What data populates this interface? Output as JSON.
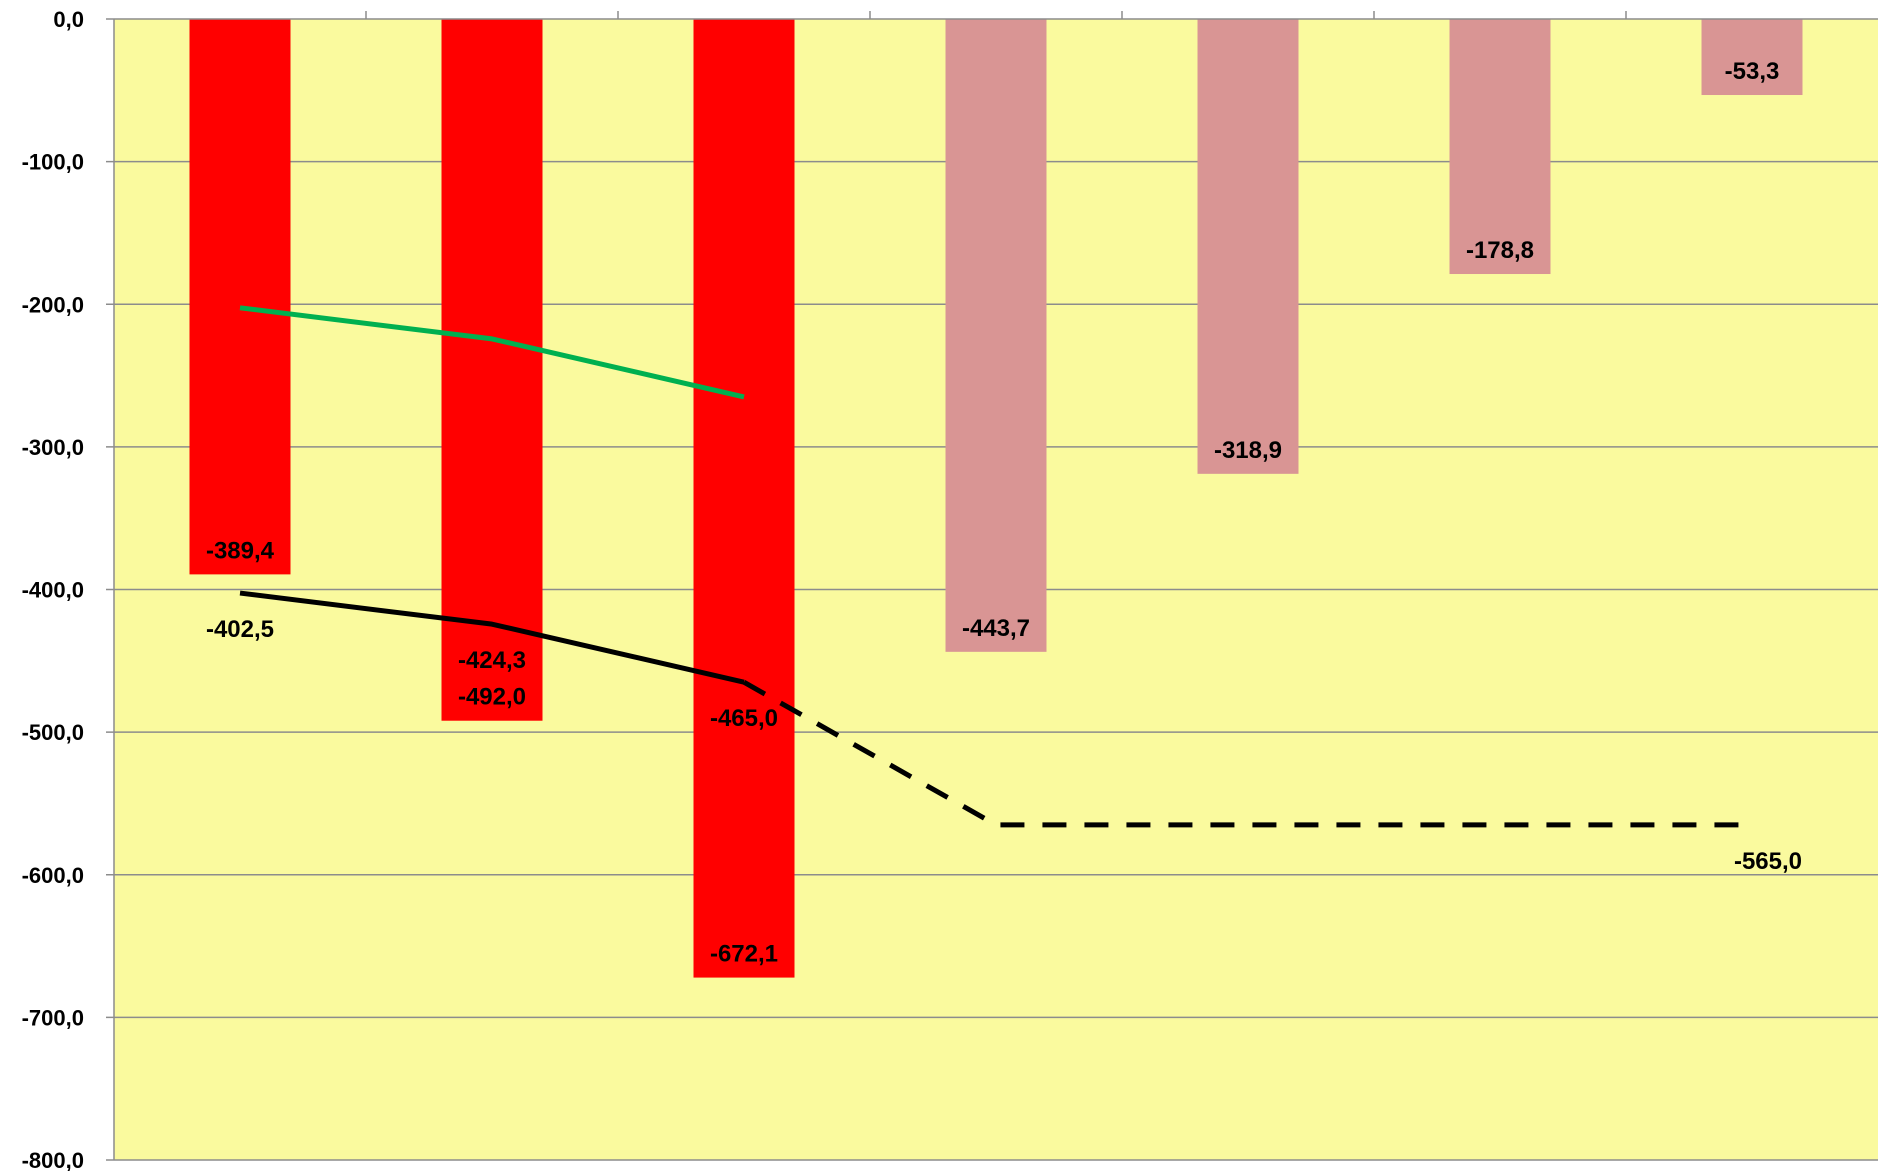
{
  "chart_data": {
    "type": "bar",
    "categories": [
      "",
      "",
      "",
      "",
      "",
      "",
      ""
    ],
    "ylim": [
      -800,
      0
    ],
    "yticks": [
      0,
      -100,
      -200,
      -300,
      -400,
      -500,
      -600,
      -700,
      -800
    ],
    "ytick_labels": [
      "0,0",
      "-100,0",
      "-200,0",
      "-300,0",
      "-400,0",
      "-500,0",
      "-600,0",
      "-700,0",
      "-800,0"
    ],
    "grid": true,
    "plot_background": "#FAFA9E",
    "bars": {
      "values": [
        -389.4,
        -492.0,
        -672.1,
        -443.7,
        -318.9,
        -178.8,
        -53.3
      ],
      "labels": [
        "-389,4",
        "-492,0",
        "-672,1",
        "-443,7",
        "-318,9",
        "-178,8",
        "-53,3"
      ],
      "colors": [
        "#FF0000",
        "#FF0000",
        "#FF0000",
        "#D99594",
        "#D99594",
        "#D99594",
        "#D99594"
      ]
    },
    "lines": [
      {
        "color": "#00B050",
        "style": "solid",
        "points": [
          [
            0,
            -202.5
          ],
          [
            1,
            -224.3
          ],
          [
            2,
            -265.0
          ]
        ]
      },
      {
        "color": "#000000",
        "style": "solid",
        "points": [
          [
            0,
            -402.5
          ],
          [
            1,
            -424.3
          ],
          [
            2,
            -465.0
          ]
        ],
        "labels": [
          "-402,5",
          "-424,3",
          "-465,0"
        ]
      },
      {
        "color": "#000000",
        "style": "dashed",
        "points": [
          [
            2,
            -465.0
          ],
          [
            3,
            -565.0
          ],
          [
            4,
            -565.0
          ],
          [
            5,
            -565.0
          ],
          [
            6,
            -565.0
          ]
        ],
        "end_label": "-565,0"
      }
    ]
  }
}
